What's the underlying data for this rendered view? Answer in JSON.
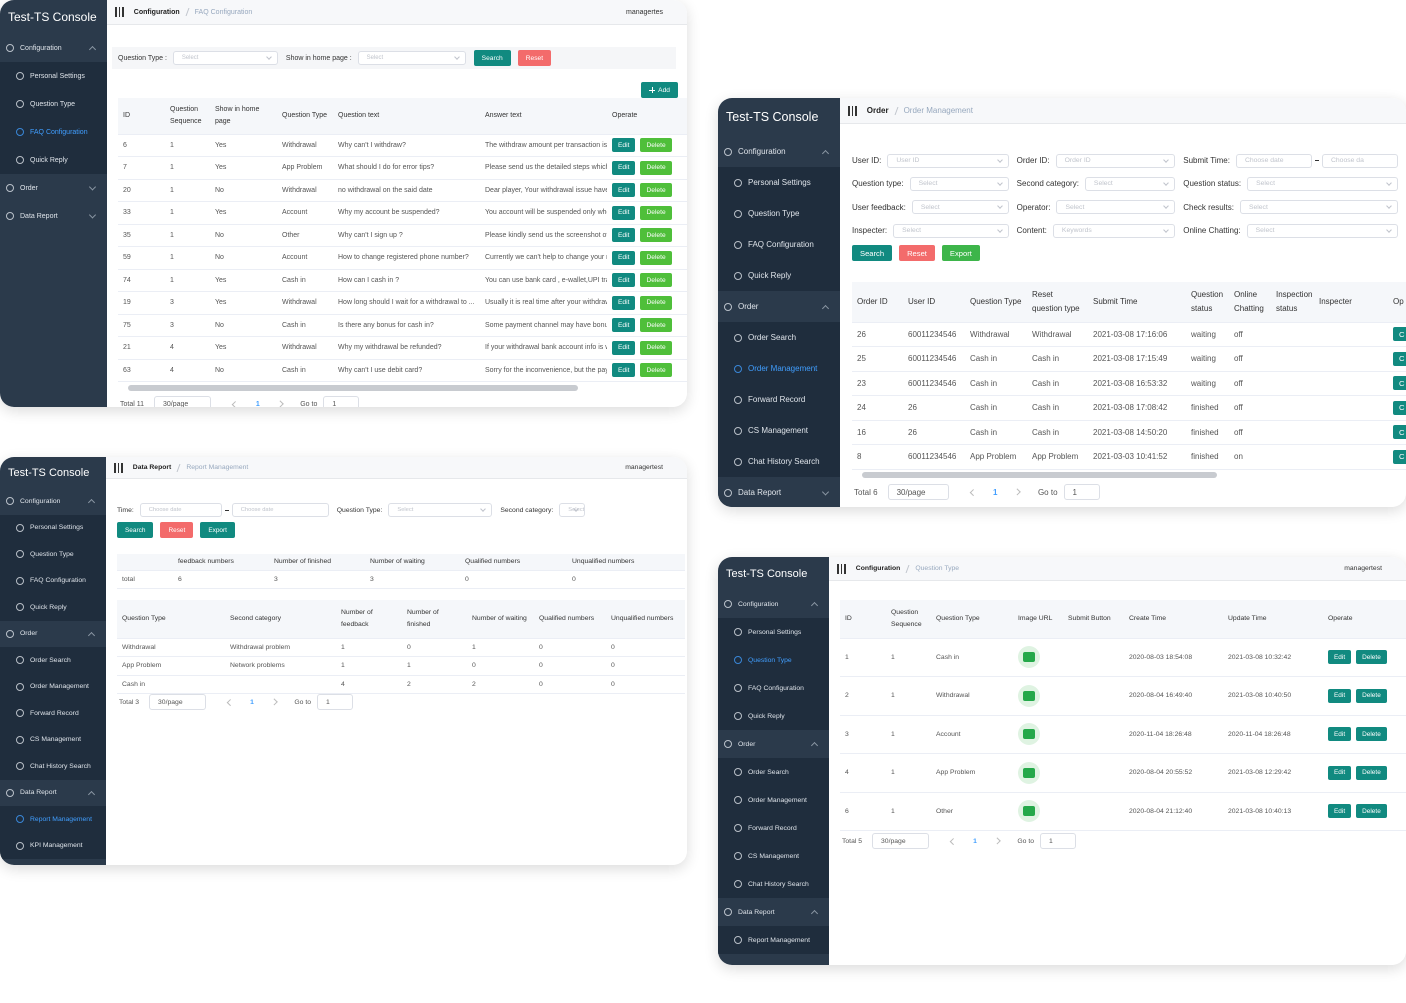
{
  "panels": [
    {
      "sidebar": {
        "title": "Test-TS Console",
        "menu": [
          {
            "label": "Configuration",
            "items": [
              {
                "label": "Personal Settings"
              },
              {
                "label": "Question Type"
              },
              {
                "label": "FAQ Configuration",
                "active": true
              },
              {
                "label": "Quick Reply"
              }
            ]
          },
          {
            "label": "Order"
          },
          {
            "label": "Data Report"
          }
        ]
      },
      "header": {
        "breadcrumb": [
          "Configuration",
          "FAQ Configuration"
        ],
        "user": "managertes"
      },
      "filters": [
        [
          {
            "label": "Question Type :",
            "placeholder": "Select"
          },
          {
            "label": "Show in home page :",
            "placeholder": "Select"
          }
        ]
      ],
      "buttons": [
        {
          "label": "Search",
          "color": "#118a80"
        },
        {
          "label": "Reset",
          "color": "#f36b6b"
        }
      ],
      "add_button": {
        "label": "Add",
        "color": "#118a80"
      },
      "tables": [
        {
          "columns": [
            "ID",
            "Question Sequence",
            "Show in home page",
            "Question Type",
            "Question text",
            "Answer text",
            "Operate"
          ],
          "rows": [
            [
              6,
              1,
              "Yes",
              "Withdrawal",
              "Why can't I withdraw?",
              "The withdraw amount per transaction is fi"
            ],
            [
              7,
              1,
              "Yes",
              "App Problem",
              "What should I do for error tips?",
              "Please send us the detailed steps which l"
            ],
            [
              20,
              1,
              "No",
              "Withdrawal",
              "no withdrawal on the said date",
              "Dear player, Your withdrawal issue have b"
            ],
            [
              33,
              1,
              "Yes",
              "Account",
              "Why my account be suspended?",
              "You account will be suspended only when"
            ],
            [
              35,
              1,
              "No",
              "Other",
              "Why can't I sign up ?",
              "Please kindly send us the screenshot of y"
            ],
            [
              59,
              1,
              "No",
              "Account",
              "How to change registered phone number?",
              "Currently we can't help to change your nu"
            ],
            [
              74,
              1,
              "Yes",
              "Cash in",
              "How can I cash in ?",
              "You can use bank card , e-wallet,UPI tran"
            ],
            [
              19,
              3,
              "Yes",
              "Withdrawal",
              "How long should I wait for a withdrawal to ...",
              "Usually it is real time after your withdrawa"
            ],
            [
              75,
              3,
              "No",
              "Cash in",
              "Is there any bonus for cash in?",
              "Some payment channel may have bonus"
            ],
            [
              21,
              4,
              "Yes",
              "Withdrawal",
              "Why my withdrawal be refunded?",
              "If your withdrawal bank account info is wr"
            ],
            [
              63,
              4,
              "No",
              "Cash in",
              "Why can't I use debit card?",
              "Sorry for the inconvenience, but the paym"
            ]
          ],
          "row_actions": [
            {
              "label": "Edit",
              "color": "#118a80"
            },
            {
              "label": "Delete",
              "color": "#4fbf3a"
            }
          ]
        }
      ],
      "pagination": {
        "total": "Total 11",
        "page_size": "30/page",
        "page": 1,
        "goto": "Go to",
        "goto_value": 1
      }
    },
    {
      "sidebar": {
        "title": "Test-TS Console",
        "menu": [
          {
            "label": "Configuration",
            "items": [
              {
                "label": "Personal Settings"
              },
              {
                "label": "Question Type"
              },
              {
                "label": "FAQ Configuration"
              },
              {
                "label": "Quick Reply"
              }
            ]
          },
          {
            "label": "Order",
            "items": [
              {
                "label": "Order Search"
              },
              {
                "label": "Order Management",
                "active": true
              },
              {
                "label": "Forward Record"
              },
              {
                "label": "CS Management"
              },
              {
                "label": "Chat History Search"
              }
            ]
          },
          {
            "label": "Data Report"
          }
        ]
      },
      "header": {
        "breadcrumb": [
          "Order",
          "Order Management"
        ]
      },
      "filters": [
        [
          {
            "label": "User ID:",
            "placeholder": "User ID"
          },
          {
            "label": "Order ID:",
            "placeholder": "Order ID"
          },
          {
            "label": "Submit Time:",
            "range": [
              "Choose date",
              "Choose da"
            ]
          }
        ],
        [
          {
            "label": "Question type:",
            "placeholder": "Select"
          },
          {
            "label": "Second category:",
            "placeholder": "Select"
          },
          {
            "label": "Question status:",
            "placeholder": "Select"
          }
        ],
        [
          {
            "label": "User feedback:",
            "placeholder": "Select"
          },
          {
            "label": "Operator:",
            "placeholder": "Select"
          },
          {
            "label": "Check results:",
            "placeholder": "Select"
          }
        ],
        [
          {
            "label": "Inspecter:",
            "placeholder": "Select"
          },
          {
            "label": "Content:",
            "placeholder": "Keywords"
          },
          {
            "label": "Online Chatting:",
            "placeholder": "Select"
          }
        ]
      ],
      "buttons": [
        {
          "label": "Search",
          "color": "#118a80"
        },
        {
          "label": "Reset",
          "color": "#f36b6b"
        },
        {
          "label": "Export",
          "color": "#3db54a"
        }
      ],
      "tables": [
        {
          "columns": [
            "Order ID",
            "User ID",
            "Question Type",
            "Reset question type",
            "Submit Time",
            "Question status",
            "Online Chatting",
            "Inspection status",
            "Inspecter",
            "Op"
          ],
          "rows": [
            [
              26,
              60011234546,
              "Withdrawal",
              "Withdrawal",
              "2021-03-08 17:16:06",
              "waiting",
              "off",
              null,
              null
            ],
            [
              25,
              60011234546,
              "Cash in",
              "Cash in",
              "2021-03-08 17:15:49",
              "waiting",
              "off",
              null,
              null
            ],
            [
              23,
              60011234546,
              "Cash in",
              "Cash in",
              "2021-03-08 16:53:32",
              "waiting",
              "off",
              null,
              null
            ],
            [
              24,
              26,
              "Cash in",
              "Cash in",
              "2021-03-08 17:08:42",
              "finished",
              "off",
              null,
              null
            ],
            [
              16,
              26,
              "Cash in",
              "Cash in",
              "2021-03-08 14:50:20",
              "finished",
              "off",
              null,
              null
            ],
            [
              8,
              60011234546,
              "App Problem",
              "App Problem",
              "2021-03-03 10:41:52",
              "finished",
              "on",
              null,
              null
            ]
          ],
          "row_actions": [
            {
              "label": "C",
              "color": "#118a80"
            }
          ]
        }
      ],
      "pagination": {
        "total": "Total 6",
        "page_size": "30/page",
        "page": 1,
        "goto": "Go to",
        "goto_value": 1
      }
    },
    {
      "sidebar": {
        "title": "Test-TS Console",
        "menu": [
          {
            "label": "Configuration",
            "items": [
              {
                "label": "Personal Settings"
              },
              {
                "label": "Question Type"
              },
              {
                "label": "FAQ Configuration"
              },
              {
                "label": "Quick Reply"
              }
            ]
          },
          {
            "label": "Order",
            "items": [
              {
                "label": "Order Search"
              },
              {
                "label": "Order Management"
              },
              {
                "label": "Forward Record"
              },
              {
                "label": "CS Management"
              },
              {
                "label": "Chat History Search"
              }
            ]
          },
          {
            "label": "Data Report",
            "items": [
              {
                "label": "Report Management",
                "active": true
              },
              {
                "label": "KPI Management"
              }
            ]
          }
        ]
      },
      "header": {
        "breadcrumb": [
          "Data Report",
          "Report Management"
        ],
        "user": "managertest"
      },
      "filters": [
        [
          {
            "label": "Time:",
            "range": [
              "Choose date",
              "Choose date"
            ]
          },
          {
            "label": "Question Type:",
            "placeholder": "Select"
          },
          {
            "label": "Second category:",
            "placeholder": "Select"
          }
        ]
      ],
      "buttons": [
        {
          "label": "Search",
          "color": "#118a80"
        },
        {
          "label": "Reset",
          "color": "#f36b6b"
        },
        {
          "label": "Export",
          "color": "#118a80"
        }
      ],
      "tables": [
        {
          "columns": [
            null,
            "feedback numbers",
            "Number of finished",
            "Number of waiting",
            "Qualified numbers",
            "Unqualified numbers"
          ],
          "rows": [
            [
              "total",
              6,
              3,
              3,
              0,
              0
            ]
          ]
        },
        {
          "columns": [
            "Question Type",
            "Second category",
            "Number of feedback",
            "Number of finished",
            "Number of waiting",
            "Qualified numbers",
            "Unqualified numbers"
          ],
          "rows": [
            [
              "Withdrawal",
              "Withdrawal problem",
              1,
              0,
              1,
              0,
              0
            ],
            [
              "App Problem",
              "Network problems",
              1,
              1,
              0,
              0,
              0
            ],
            [
              "Cash in",
              null,
              4,
              2,
              2,
              0,
              0
            ]
          ]
        }
      ],
      "pagination": {
        "total": "Total 3",
        "page_size": "30/page",
        "page": 1,
        "goto": "Go to",
        "goto_value": 1
      }
    },
    {
      "sidebar": {
        "title": "Test-TS Console",
        "menu": [
          {
            "label": "Configuration",
            "items": [
              {
                "label": "Personal Settings"
              },
              {
                "label": "Question Type",
                "active": true
              },
              {
                "label": "FAQ Configuration"
              },
              {
                "label": "Quick Reply"
              }
            ]
          },
          {
            "label": "Order",
            "items": [
              {
                "label": "Order Search"
              },
              {
                "label": "Order Management"
              },
              {
                "label": "Forward Record"
              },
              {
                "label": "CS Management"
              },
              {
                "label": "Chat History Search"
              }
            ]
          },
          {
            "label": "Data Report",
            "items": [
              {
                "label": "Report Management"
              }
            ]
          }
        ]
      },
      "header": {
        "breadcrumb": [
          "Configuration",
          "Question Type"
        ],
        "user": "managertest"
      },
      "tables": [
        {
          "columns": [
            "ID",
            "Question Sequence",
            "Question Type",
            "Image URL",
            "Submit Button",
            "Create Time",
            "Update Time",
            "Operate"
          ],
          "rows": [
            [
              1,
              1,
              "Cash in",
              null,
              null,
              "2020-08-03 18:54:08",
              "2021-03-08 10:32:42"
            ],
            [
              2,
              1,
              "Withdrawal",
              null,
              null,
              "2020-08-04 16:49:40",
              "2021-03-08 10:40:50"
            ],
            [
              3,
              1,
              "Account",
              null,
              null,
              "2020-11-04 18:26:48",
              "2020-11-04 18:26:48"
            ],
            [
              4,
              1,
              "App Problem",
              null,
              null,
              "2020-08-04 20:55:52",
              "2021-03-08 12:29:42"
            ],
            [
              6,
              1,
              "Other",
              null,
              null,
              "2020-08-04 21:12:40",
              "2021-03-08 10:40:13"
            ]
          ],
          "row_actions": [
            {
              "label": "Edit",
              "color": "#118a80"
            },
            {
              "label": "Delete",
              "color": "#118a80"
            }
          ]
        }
      ],
      "pagination": {
        "total": "Total 5",
        "page_size": "30/page",
        "page": 1,
        "goto": "Go to",
        "goto_value": 1
      }
    }
  ]
}
